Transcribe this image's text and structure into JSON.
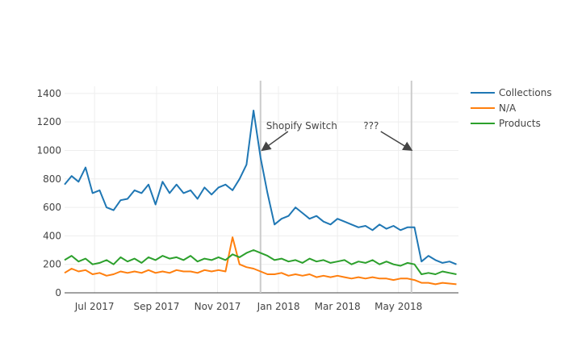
{
  "chart_data": {
    "type": "line",
    "title": "",
    "xlabel": "",
    "ylabel": "",
    "ylim": [
      0,
      1450
    ],
    "xlim": [
      "2017-06-01",
      "2018-06-30"
    ],
    "yticks": [
      0,
      200,
      400,
      600,
      800,
      1000,
      1200,
      1400
    ],
    "xticks": [
      {
        "date": "2017-07-01",
        "label": "Jul 2017"
      },
      {
        "date": "2017-09-01",
        "label": "Sep 2017"
      },
      {
        "date": "2017-11-01",
        "label": "Nov 2017"
      },
      {
        "date": "2018-01-01",
        "label": "Jan 2018"
      },
      {
        "date": "2018-03-01",
        "label": "Mar 2018"
      },
      {
        "date": "2018-05-01",
        "label": "May 2018"
      }
    ],
    "grid": true,
    "legend_position": "right",
    "x_start": "2017-06-01",
    "x_step_days": 7,
    "series": [
      {
        "name": "Collections",
        "color": "#1f77b4",
        "values": [
          760,
          820,
          780,
          880,
          700,
          720,
          600,
          580,
          650,
          660,
          720,
          700,
          760,
          620,
          780,
          700,
          760,
          700,
          720,
          660,
          740,
          690,
          740,
          760,
          720,
          800,
          900,
          1280,
          950,
          700,
          480,
          520,
          540,
          600,
          560,
          520,
          540,
          500,
          480,
          520,
          500,
          480,
          460,
          470,
          440,
          480,
          450,
          470,
          440,
          460,
          460,
          220,
          260,
          230,
          210,
          220,
          200
        ]
      },
      {
        "name": "N/A",
        "color": "#ff7f0e",
        "values": [
          140,
          170,
          150,
          160,
          130,
          140,
          120,
          130,
          150,
          140,
          150,
          140,
          160,
          140,
          150,
          140,
          160,
          150,
          150,
          140,
          160,
          150,
          160,
          150,
          390,
          200,
          180,
          170,
          150,
          130,
          130,
          140,
          120,
          130,
          120,
          130,
          110,
          120,
          110,
          120,
          110,
          100,
          110,
          100,
          110,
          100,
          100,
          90,
          100,
          100,
          90,
          70,
          70,
          60,
          70,
          65,
          60
        ]
      },
      {
        "name": "Products",
        "color": "#2ca02c",
        "values": [
          230,
          260,
          220,
          240,
          200,
          210,
          230,
          200,
          250,
          220,
          240,
          210,
          250,
          230,
          260,
          240,
          250,
          230,
          260,
          220,
          240,
          230,
          250,
          230,
          270,
          250,
          280,
          300,
          280,
          260,
          230,
          240,
          220,
          230,
          210,
          240,
          220,
          230,
          210,
          220,
          230,
          200,
          220,
          210,
          230,
          200,
          220,
          200,
          190,
          210,
          200,
          130,
          140,
          130,
          150,
          140,
          130
        ]
      }
    ],
    "annotations": [
      {
        "text": "Shopify Switch",
        "date": "2017-12-14",
        "y": 1000
      },
      {
        "text": "???",
        "date": "2018-05-14",
        "y": 1000
      }
    ]
  }
}
